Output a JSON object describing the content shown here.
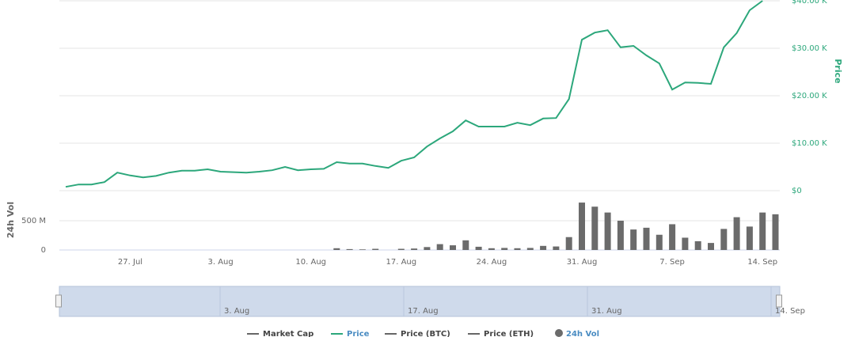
{
  "chart_data": {
    "type": "combo",
    "categories": [
      null,
      null,
      null,
      null,
      null,
      "27. Jul",
      null,
      null,
      null,
      null,
      null,
      null,
      "3. Aug",
      null,
      null,
      null,
      null,
      null,
      null,
      "10. Aug",
      null,
      null,
      null,
      null,
      null,
      null,
      "17. Aug",
      null,
      null,
      null,
      null,
      null,
      null,
      "24. Aug",
      null,
      null,
      null,
      null,
      null,
      null,
      "31. Aug",
      null,
      null,
      null,
      null,
      null,
      null,
      "7. Sep",
      null,
      null,
      null,
      null,
      null,
      null,
      "14. Sep",
      null
    ],
    "series": [
      {
        "name": "Market Cap",
        "type": "line",
        "color": "#666666",
        "visible": false
      },
      {
        "name": "Price",
        "type": "line",
        "axis": "y",
        "color": "#2ca77b",
        "visible": true,
        "values": [
          800,
          1300,
          1300,
          1800,
          3800,
          3200,
          2800,
          3100,
          3800,
          4200,
          4200,
          4500,
          4000,
          3900,
          3800,
          4000,
          4300,
          5000,
          4300,
          4500,
          4600,
          6000,
          5700,
          5700,
          5200,
          4800,
          6300,
          7000,
          9300,
          11000,
          12500,
          14800,
          13500,
          13500,
          13500,
          14300,
          13800,
          15200,
          15300,
          19300,
          31800,
          33300,
          33800,
          30200,
          30500,
          28500,
          26800,
          21300,
          22800,
          22700,
          22500,
          30200,
          33200,
          38000,
          40000,
          null
        ]
      },
      {
        "name": "Price (BTC)",
        "type": "line",
        "color": "#666666",
        "visible": false
      },
      {
        "name": "Price (ETH)",
        "type": "line",
        "color": "#666666",
        "visible": false
      },
      {
        "name": "24h Vol",
        "type": "bar",
        "axis": "y2",
        "color": "#6b6b6b",
        "visible": true,
        "values": [
          null,
          null,
          null,
          null,
          null,
          null,
          null,
          null,
          null,
          null,
          null,
          null,
          null,
          null,
          null,
          null,
          null,
          null,
          null,
          null,
          null,
          30000000,
          15000000,
          10000000,
          20000000,
          null,
          20000000,
          25000000,
          50000000,
          100000000,
          80000000,
          165000000,
          55000000,
          30000000,
          35000000,
          30000000,
          35000000,
          70000000,
          60000000,
          220000000,
          810000000,
          740000000,
          640000000,
          500000000,
          350000000,
          380000000,
          260000000,
          440000000,
          210000000,
          150000000,
          120000000,
          360000000,
          560000000,
          400000000,
          640000000,
          610000000
        ]
      }
    ],
    "ylabel": "Price",
    "ylim": [
      0,
      40000
    ],
    "yticks": [
      0,
      {
        "value": 10000,
        "label": "$10.00 K"
      },
      {
        "value": 20000,
        "label": "$20.00 K"
      },
      {
        "value": 30000,
        "label": "$30.00 K"
      },
      {
        "value": 40000,
        "label": "$40.00 K"
      }
    ],
    "y0label": "$0",
    "y2label": "24h Vol",
    "y2lim": [
      0,
      1000000000
    ],
    "y2ticks": [
      0,
      {
        "value": 500000000,
        "label": "500 M"
      }
    ],
    "grid": true,
    "navigator": {
      "labels": [
        "3. Aug",
        "17. Aug",
        "31. Aug",
        "14. Sep"
      ]
    }
  }
}
